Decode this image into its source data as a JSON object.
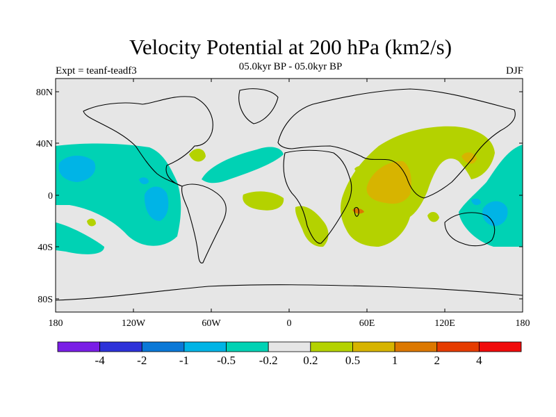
{
  "header": {
    "title": "Velocity Potential at 200 hPa (km2/s)",
    "subtitle": "05.0kyr BP - 05.0kyr BP",
    "experiment": "Expt = teanf-teadf3",
    "season": "DJF"
  },
  "map": {
    "lat_ticks": [
      "80N",
      "40N",
      "0",
      "40S",
      "80S"
    ],
    "lon_ticks": [
      "180",
      "120W",
      "60W",
      "0",
      "60E",
      "120E",
      "180"
    ],
    "background_color": "#e6e6e6"
  },
  "colorbar": {
    "colors": [
      "#7a1ee6",
      "#2d32d9",
      "#0a78d7",
      "#00b4e6",
      "#00d2b4",
      "#e6e6e6",
      "#b4d200",
      "#d7b400",
      "#dc7800",
      "#e63c00",
      "#f00a0a"
    ],
    "labels": [
      "-4",
      "-2",
      "-1",
      "-0.5",
      "-0.2",
      "0.2",
      "0.5",
      "1",
      "2",
      "4"
    ]
  }
}
